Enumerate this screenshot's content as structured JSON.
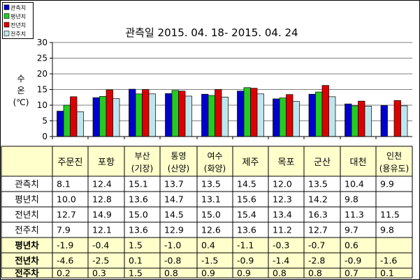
{
  "chart_data": {
    "type": "bar",
    "title": "관측일 2015. 04. 18-  2015. 04. 24",
    "ylabel_lines": [
      "수",
      "온",
      "(℃)"
    ],
    "ylim": [
      0,
      30
    ],
    "yticks": [
      0,
      5,
      10,
      15,
      20,
      25,
      30
    ],
    "grid": true,
    "legend_position": "top-left",
    "categories": [
      [
        "주문진"
      ],
      [
        "포항"
      ],
      [
        "부산",
        "(기장)"
      ],
      [
        "통영",
        "(산양)"
      ],
      [
        "여수",
        "(화양)"
      ],
      [
        "제주"
      ],
      [
        "목포"
      ],
      [
        "군산"
      ],
      [
        "대천"
      ],
      [
        "인천",
        "(용유도)"
      ]
    ],
    "series": [
      {
        "name": "관측치",
        "color": "#0000cc",
        "values": [
          8.1,
          12.4,
          15.1,
          13.7,
          13.5,
          14.5,
          12.0,
          13.5,
          10.4,
          9.9
        ]
      },
      {
        "name": "평년치",
        "color": "#22cc22",
        "values": [
          10.0,
          12.8,
          13.6,
          14.7,
          13.1,
          15.6,
          12.3,
          14.2,
          9.8,
          null
        ]
      },
      {
        "name": "전년치",
        "color": "#dd0000",
        "values": [
          12.7,
          14.9,
          15.0,
          14.5,
          15.0,
          15.4,
          13.4,
          16.3,
          11.3,
          11.5
        ]
      },
      {
        "name": "전주치",
        "color": "#bfe6ee",
        "values": [
          7.9,
          12.1,
          13.6,
          12.9,
          12.6,
          13.6,
          11.2,
          12.7,
          9.7,
          9.8
        ]
      }
    ],
    "diff_rows": [
      {
        "name": "평년차",
        "values": [
          "-1.9",
          "-0.4",
          "1.5",
          "-1.0",
          "0.4",
          "-1.1",
          "-0.3",
          "-0.7",
          "0.6",
          ""
        ]
      },
      {
        "name": "전년차",
        "values": [
          "-4.6",
          "-2.5",
          "0.1",
          "-0.8",
          "-1.5",
          "-0.9",
          "-1.4",
          "-2.8",
          "-0.9",
          "-1.6"
        ]
      },
      {
        "name": "전주차",
        "values": [
          "0.2",
          "0.3",
          "1.5",
          "0.8",
          "0.9",
          "0.9",
          "0.8",
          "0.8",
          "0.7",
          "0.1"
        ]
      }
    ]
  }
}
